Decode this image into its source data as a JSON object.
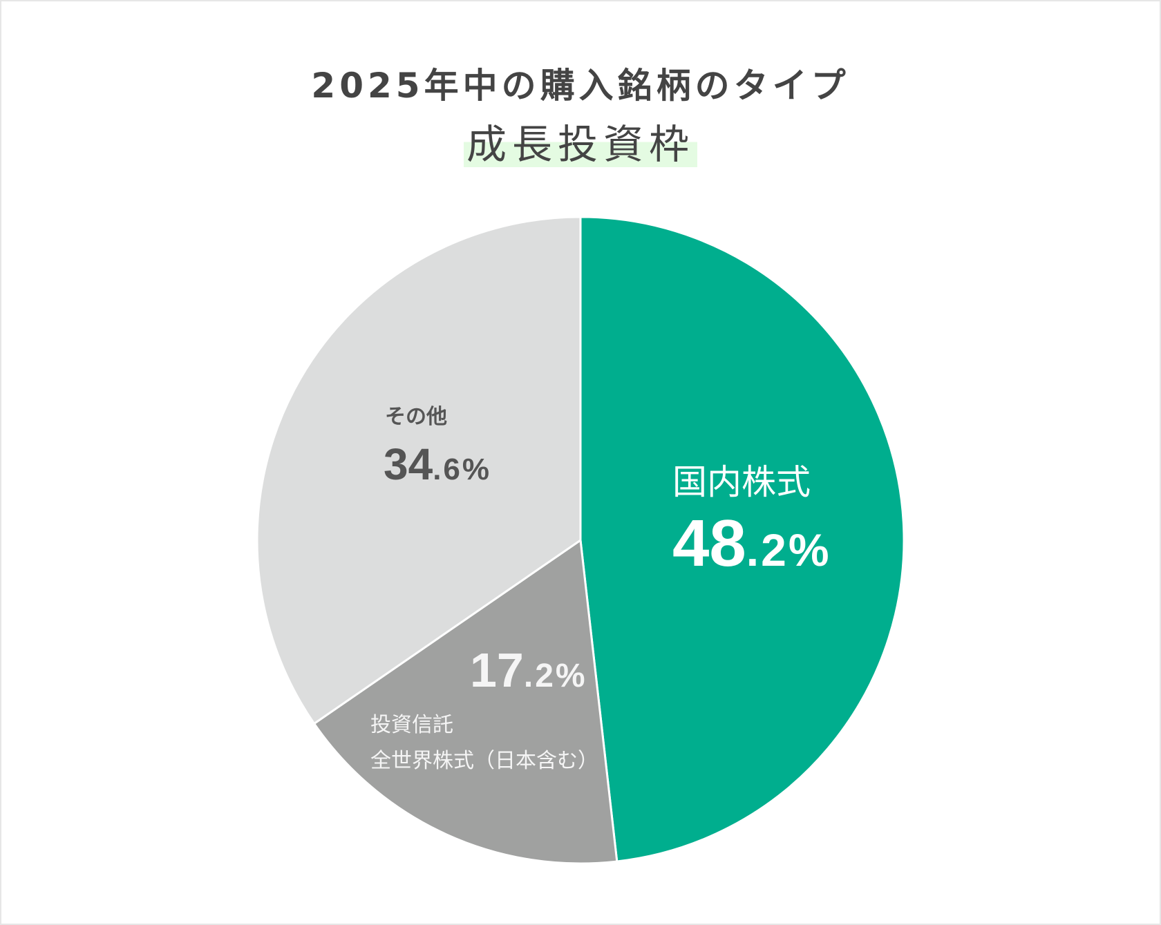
{
  "title": "2025年中の購入銘柄のタイプ",
  "subtitle": "成長投資枠",
  "colors": {
    "accent_highlight": "#e4fbe2",
    "text": "#444444"
  },
  "chart_data": {
    "type": "pie",
    "title": "2025年中の購入銘柄のタイプ",
    "subtitle": "成長投資枠",
    "start": "top",
    "direction": "clockwise",
    "slices": [
      {
        "label": "国内株式",
        "value": 48.2,
        "display_int": "48",
        "display_dec": ".2%",
        "color": "#00ae8e",
        "text_color": "#ffffff"
      },
      {
        "label": "投資信託",
        "label2": "全世界株式（日本含む）",
        "value": 17.2,
        "display_int": "17",
        "display_dec": ".2%",
        "color": "#a0a1a0",
        "text_color": "#f5f5f5"
      },
      {
        "label": "その他",
        "value": 34.6,
        "display_int": "34",
        "display_dec": ".6%",
        "color": "#dcdddd",
        "text_color": "#555555"
      }
    ]
  }
}
